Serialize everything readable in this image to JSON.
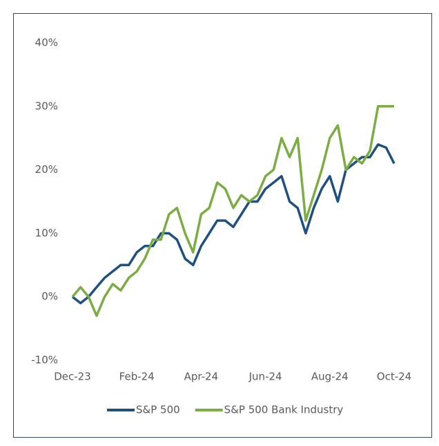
{
  "chart_data": {
    "type": "line",
    "categories": [
      "Dec-23",
      null,
      null,
      null,
      null,
      null,
      null,
      null,
      "Feb-24",
      null,
      null,
      null,
      null,
      null,
      null,
      null,
      "Apr-24",
      null,
      null,
      null,
      null,
      null,
      null,
      null,
      "Jun-24",
      null,
      null,
      null,
      null,
      null,
      null,
      null,
      "Aug-24",
      null,
      null,
      null,
      null,
      null,
      null,
      null,
      "Oct-24"
    ],
    "series": [
      {
        "name": "S&P 500",
        "color": "#1f5080",
        "values": [
          0,
          -1,
          0,
          1.5,
          3,
          4,
          5,
          5,
          7,
          8,
          8,
          10,
          10,
          9,
          6,
          5,
          8,
          10,
          12,
          12,
          11,
          13,
          15,
          15,
          17,
          18,
          19,
          15,
          14,
          10,
          14,
          17,
          19,
          15,
          20,
          21,
          22,
          22,
          24,
          23.5,
          21
        ]
      },
      {
        "name": "S&P 500 Bank Industry",
        "color": "#7cac44",
        "values": [
          0,
          1.5,
          0,
          -3,
          0,
          2,
          1,
          3,
          4,
          6,
          9,
          9,
          13,
          14,
          10,
          7,
          13,
          14,
          18,
          17,
          14,
          16,
          15,
          16,
          19,
          20,
          25,
          22,
          25,
          12,
          16,
          20,
          25,
          27,
          20,
          22,
          21,
          23,
          30,
          30,
          30
        ]
      }
    ],
    "ylim": [
      -10,
      40
    ],
    "yticks": [
      {
        "value": -10,
        "label": "-10%"
      },
      {
        "value": 0,
        "label": "0%"
      },
      {
        "value": 10,
        "label": "10%"
      },
      {
        "value": 20,
        "label": "20%"
      },
      {
        "value": 30,
        "label": "30%"
      },
      {
        "value": 40,
        "label": "40%"
      }
    ],
    "grid": false,
    "legend": "bottom"
  }
}
